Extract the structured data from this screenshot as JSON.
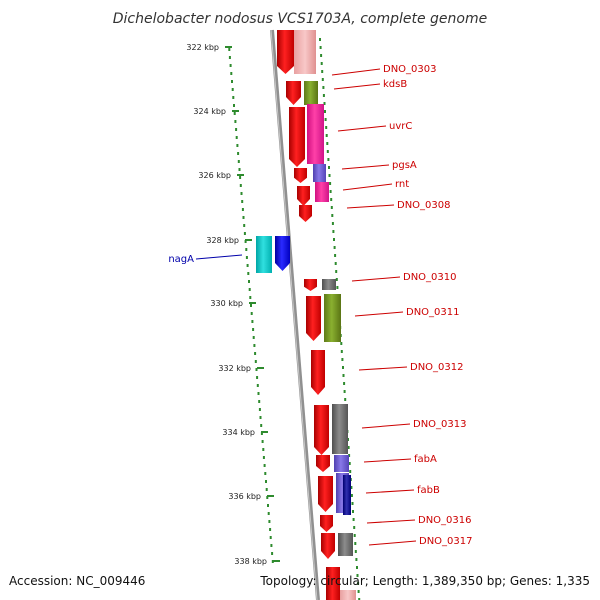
{
  "title": "Dichelobacter nodosus VCS1703A, complete genome",
  "accession": "Accession: NC_009446",
  "summary": "Topology: circular; Length: 1,389,350 bp; Genes: 1,335",
  "colors": {
    "axis": "#888888",
    "ticks": "#2e8b2e",
    "forward_label": "#cc0000",
    "reverse_label": "#0000aa",
    "cds": "#ff0000"
  },
  "scale_labels": [
    "322 kbp",
    "324 kbp",
    "326 kbp",
    "328 kbp",
    "330 kbp",
    "332 kbp",
    "334 kbp",
    "336 kbp",
    "338 kbp"
  ],
  "genes": [
    {
      "label": "DNO_0303",
      "strand": "forward",
      "color": "#ff0000"
    },
    {
      "label": "kdsB",
      "strand": "forward",
      "color": "#ff0000"
    },
    {
      "label": "uvrC",
      "strand": "forward",
      "color": "#ff0000"
    },
    {
      "label": "pgsA",
      "strand": "forward",
      "color": "#ff0000"
    },
    {
      "label": "rnt",
      "strand": "forward",
      "color": "#ff0000"
    },
    {
      "label": "DNO_0308",
      "strand": "forward",
      "color": "#ff0000"
    },
    {
      "label": "nagA",
      "strand": "reverse",
      "color": "#0000ff"
    },
    {
      "label": "DNO_0310",
      "strand": "forward",
      "color": "#ff0000"
    },
    {
      "label": "DNO_0311",
      "strand": "forward",
      "color": "#ff0000"
    },
    {
      "label": "DNO_0312",
      "strand": "forward",
      "color": "#ff0000"
    },
    {
      "label": "DNO_0313",
      "strand": "forward",
      "color": "#ff0000"
    },
    {
      "label": "fabA",
      "strand": "forward",
      "color": "#ff0000"
    },
    {
      "label": "fabB",
      "strand": "forward",
      "color": "#ff0000"
    },
    {
      "label": "DNO_0316",
      "strand": "forward",
      "color": "#ff0000"
    },
    {
      "label": "DNO_0317",
      "strand": "forward",
      "color": "#ff0000"
    }
  ]
}
